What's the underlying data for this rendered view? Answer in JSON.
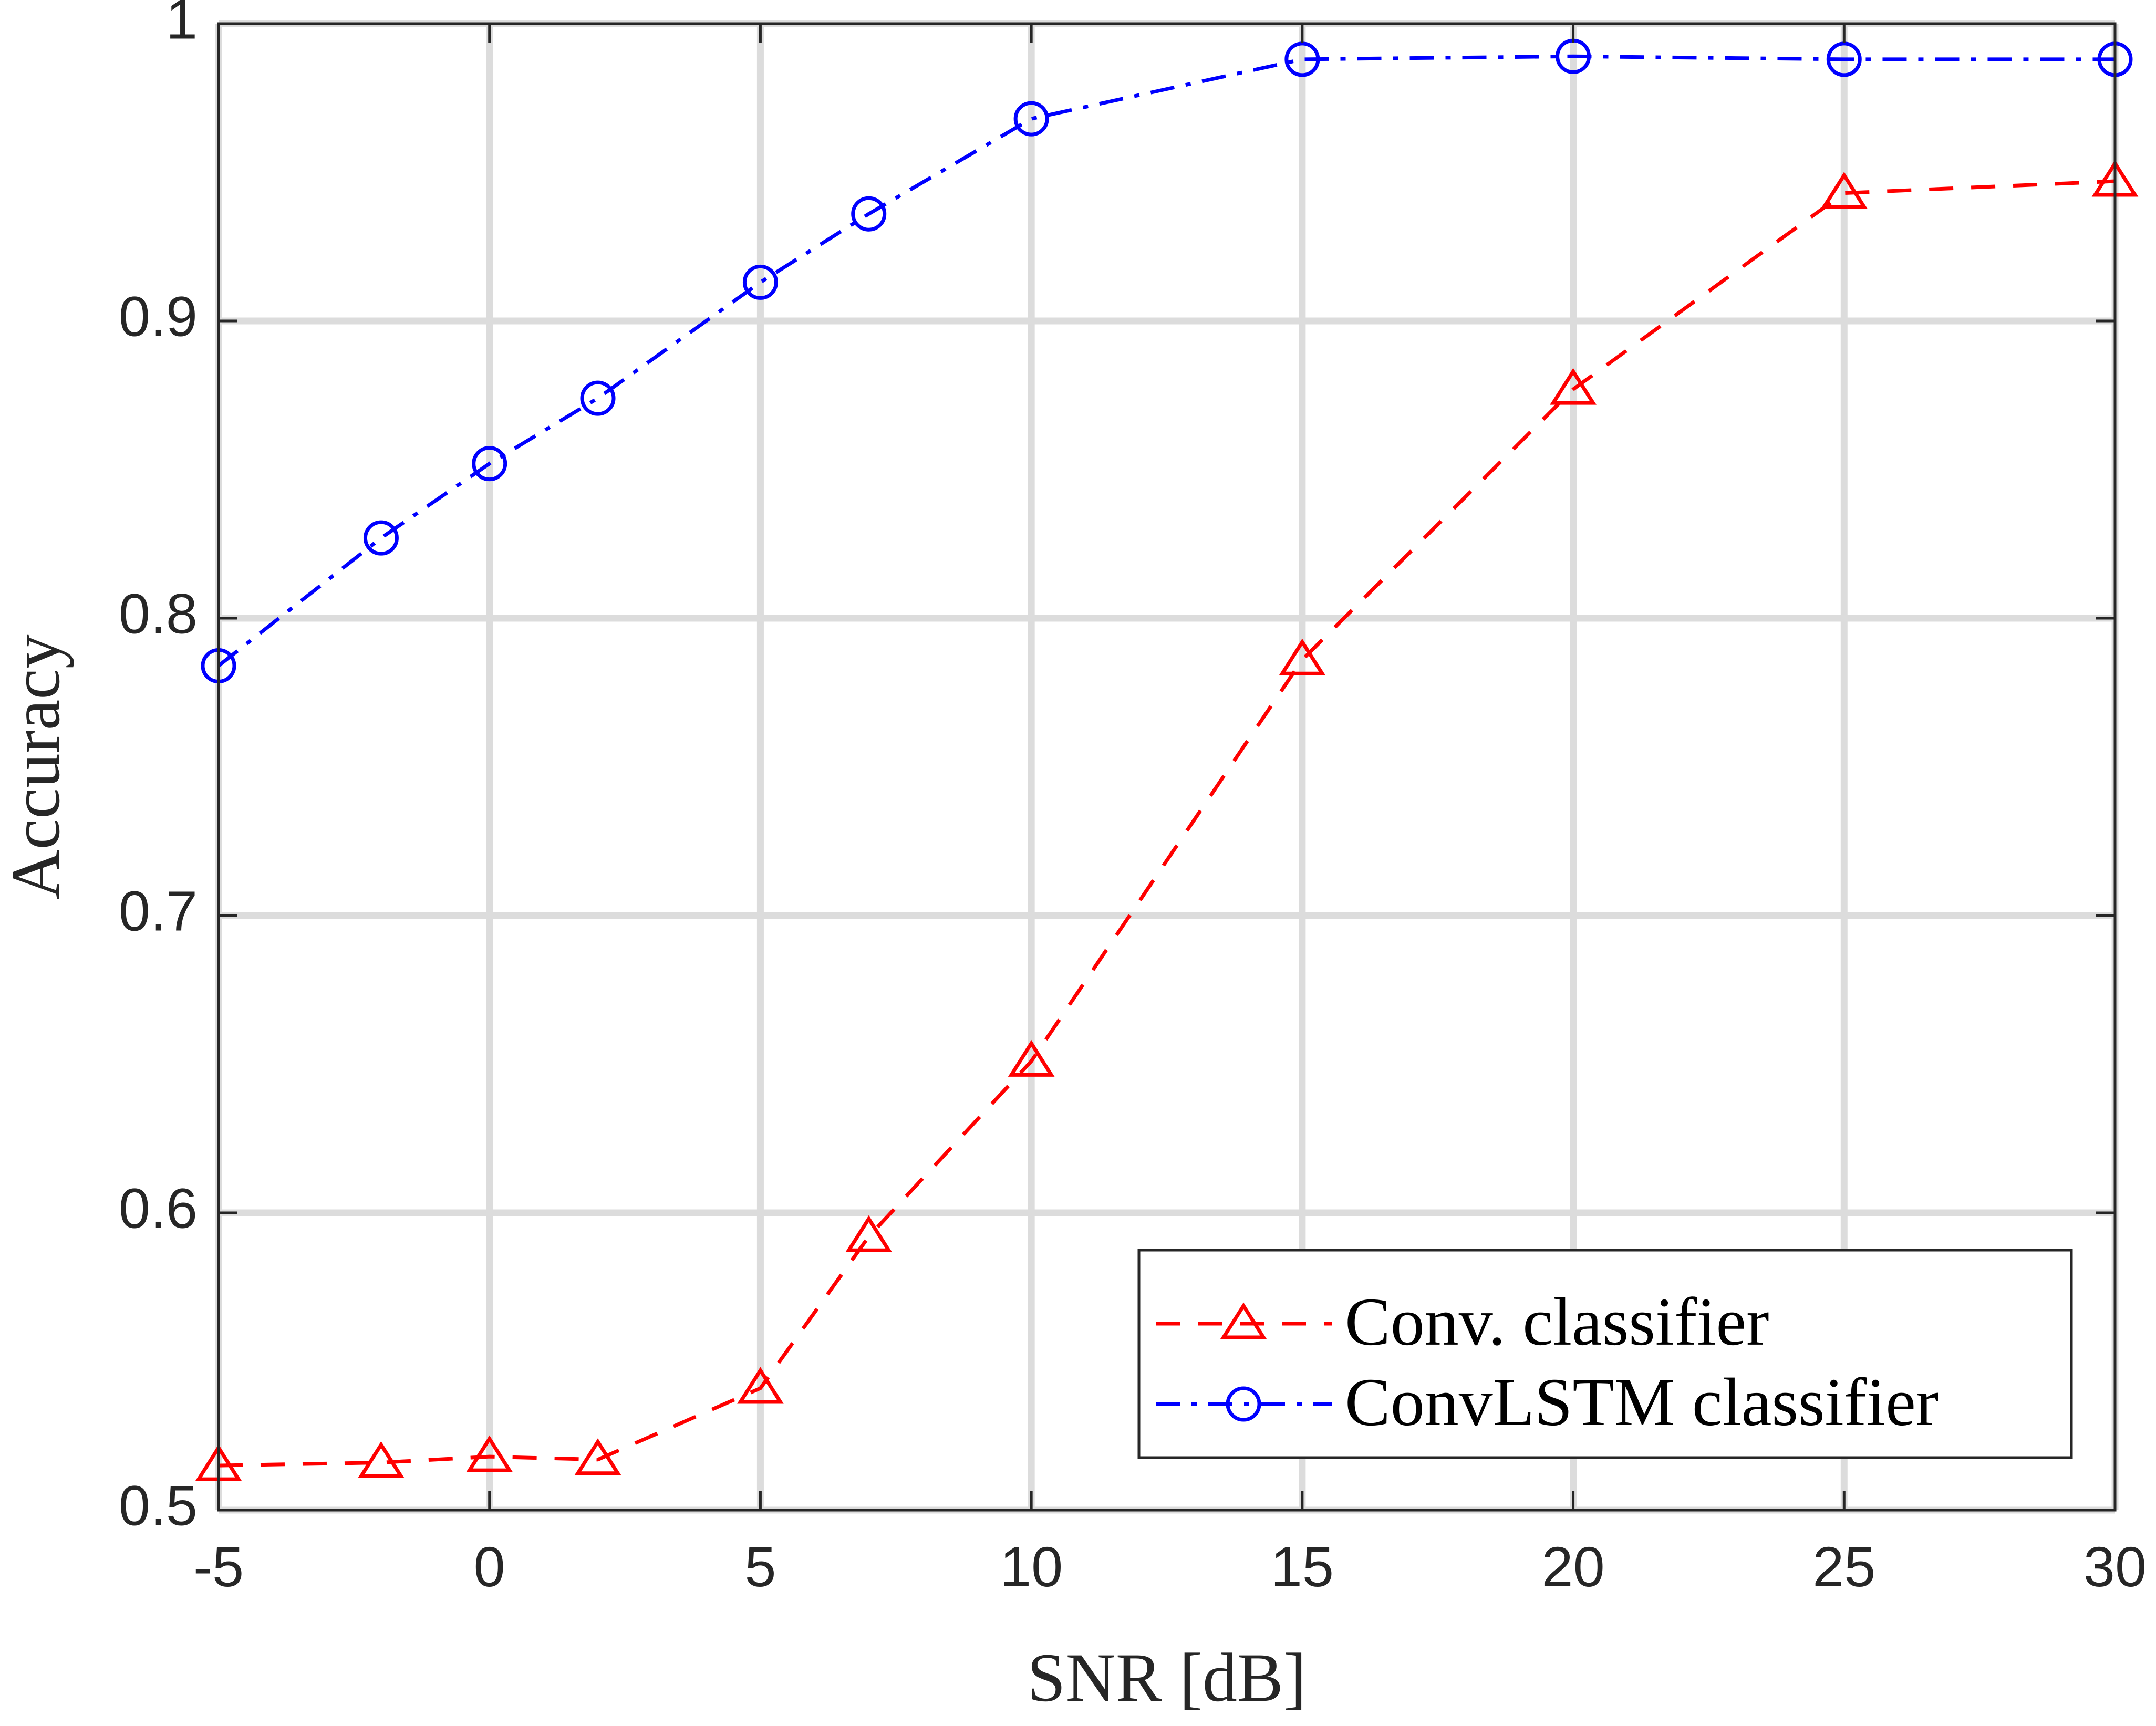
{
  "chart_data": {
    "type": "line",
    "xlabel": "SNR [dB]",
    "ylabel": "Accuracy",
    "xlim": [
      -5,
      30
    ],
    "ylim": [
      0.5,
      1
    ],
    "xticks": [
      -5,
      0,
      5,
      10,
      15,
      20,
      25,
      30
    ],
    "yticks": [
      0.5,
      0.6,
      0.7,
      0.8,
      0.9,
      1
    ],
    "ytick_labels": [
      "0.5",
      "0.6",
      "0.7",
      "0.8",
      "0.9",
      "1"
    ],
    "grid": true,
    "legend_position": "bottom-right",
    "series": [
      {
        "name": "Conv. classifier",
        "color": "#ff0000",
        "marker": "triangle",
        "line_style": "dashed",
        "x": [
          -5,
          -2,
          0,
          2,
          5,
          7,
          10,
          15,
          20,
          25,
          30
        ],
        "y": [
          0.515,
          0.516,
          0.518,
          0.517,
          0.541,
          0.592,
          0.651,
          0.786,
          0.877,
          0.943,
          0.947
        ]
      },
      {
        "name": "ConvLSTM classifier",
        "color": "#0000ff",
        "marker": "circle",
        "line_style": "dash-dot",
        "x": [
          -5,
          -2,
          0,
          2,
          5,
          7,
          10,
          15,
          20,
          25,
          30
        ],
        "y": [
          0.784,
          0.827,
          0.852,
          0.874,
          0.913,
          0.936,
          0.968,
          0.988,
          0.989,
          0.988,
          0.988
        ]
      }
    ]
  }
}
